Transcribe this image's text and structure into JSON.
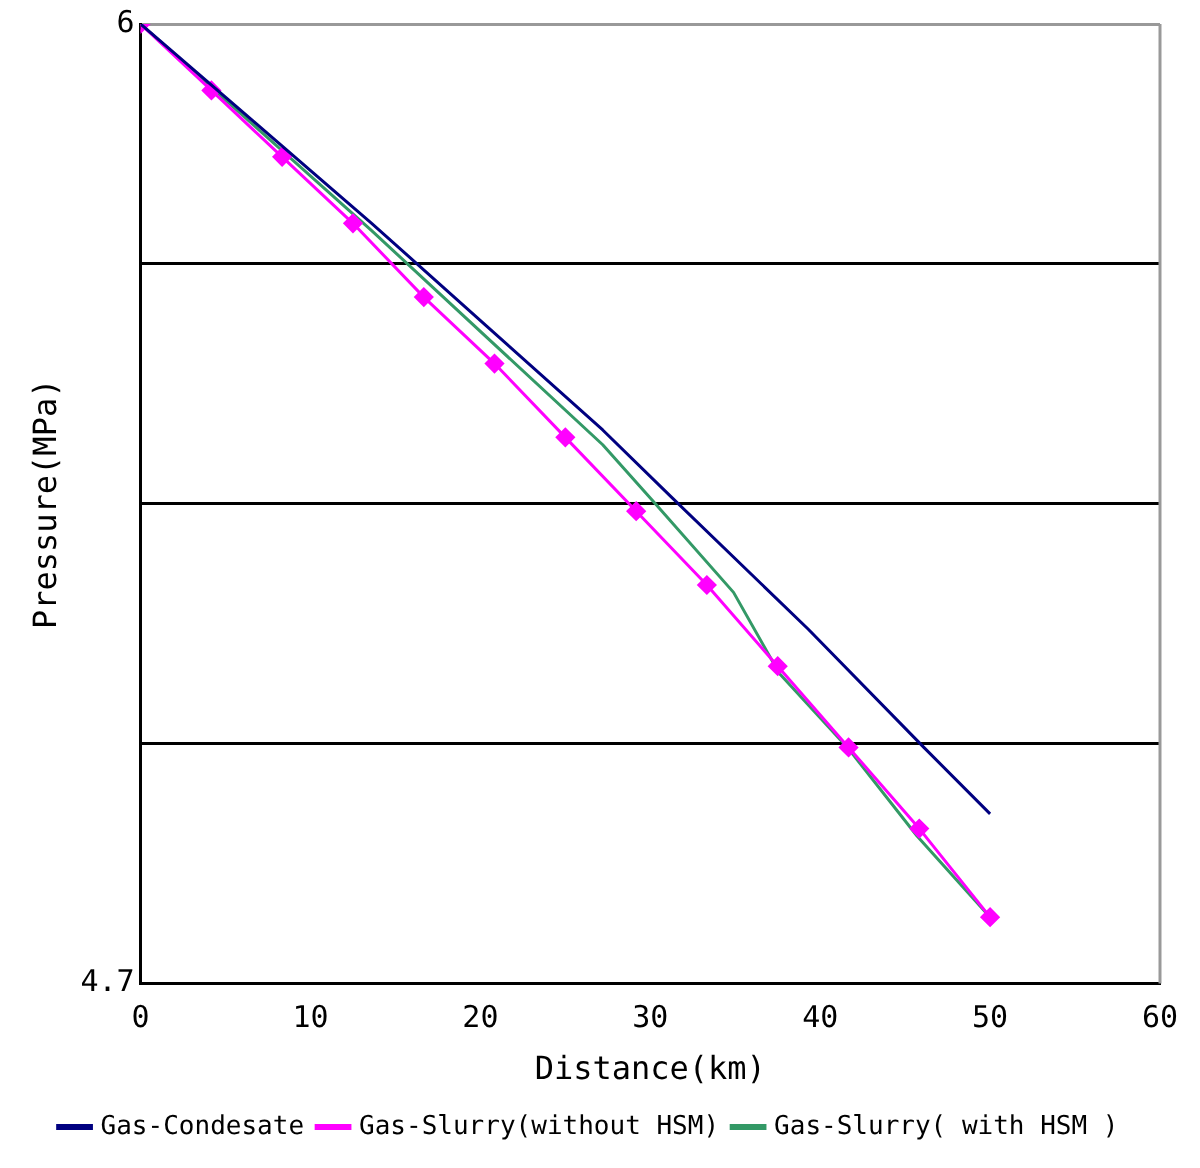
{
  "chart_data": {
    "type": "line",
    "xlabel": "Distance(km)",
    "ylabel": "Pressure(MPa)",
    "xlim": [
      0,
      60
    ],
    "xticks": [
      0,
      10,
      20,
      30,
      40,
      50,
      60
    ],
    "ylim": [
      4.7,
      6
    ],
    "yticks": [
      {
        "value": 4.7,
        "label": "4.7"
      },
      {
        "value": 5.025,
        "label": null
      },
      {
        "value": 5.35,
        "label": null
      },
      {
        "value": 5.675,
        "label": null
      },
      {
        "value": 6,
        "label": "6"
      }
    ],
    "grid": "y",
    "legend": "bottom",
    "line_style": "solid",
    "series": [
      {
        "name": "Gas-Condesate",
        "color": "#000080",
        "marker": "none",
        "x": [
          0,
          13.6,
          20.4,
          27.2,
          31.2,
          39.3,
          46.1,
          50
        ],
        "values": [
          6,
          5.73,
          5.59,
          5.45,
          5.36,
          5.18,
          5.02,
          4.93
        ]
      },
      {
        "name": "Gas-Slurry(without HSM)",
        "color": "#ff00ff",
        "marker": "diamond",
        "x": [
          0,
          4.17,
          8.33,
          12.5,
          16.67,
          20.83,
          25,
          29.17,
          33.33,
          37.5,
          41.67,
          45.83,
          50
        ],
        "values": [
          6,
          5.91,
          5.82,
          5.73,
          5.63,
          5.54,
          5.44,
          5.34,
          5.24,
          5.13,
          5.02,
          4.91,
          4.79
        ]
      },
      {
        "name": "Gas-Slurry( with HSM )",
        "color": "#339966",
        "marker": "none",
        "x": [
          0,
          13.6,
          27.2,
          30.3,
          34.9,
          37.6,
          41.6,
          45.7,
          50
        ],
        "values": [
          6,
          5.72,
          5.43,
          5.35,
          5.23,
          5.12,
          5.02,
          4.9,
          4.79
        ]
      }
    ]
  }
}
